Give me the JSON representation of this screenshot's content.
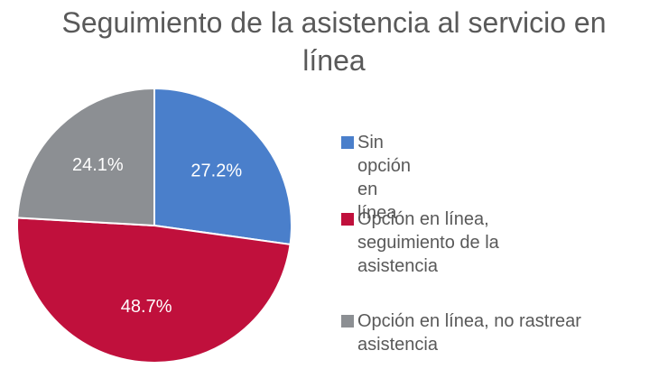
{
  "chart_data": {
    "type": "pie",
    "title": "Seguimiento de la asistencia al servicio en línea",
    "categories": [
      "Sin opción en línea",
      "Opción en línea, seguimiento de la asistencia",
      "Opción en línea, no rastrear asistencia"
    ],
    "values": [
      27.2,
      48.7,
      24.1
    ],
    "value_labels": [
      "27.2%",
      "48.7%",
      "24.1%"
    ],
    "colors": [
      "#4a7fcb",
      "#c0103c",
      "#8c8f93"
    ],
    "legend": "right"
  }
}
